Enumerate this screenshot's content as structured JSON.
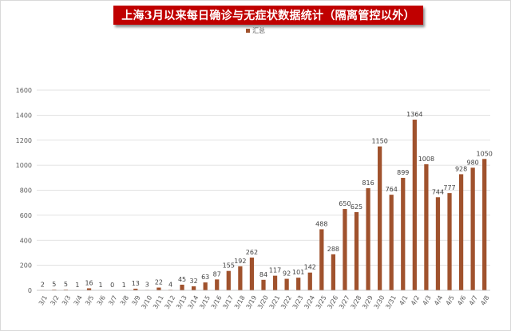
{
  "chart_data": {
    "type": "bar",
    "title": "上海3月以来每日确诊与无症状数据统计（隔离管控以外）",
    "legend": [
      "汇总"
    ],
    "legend_position": "top-center",
    "series": [
      {
        "name": "汇总",
        "color": "#a0522d",
        "values": [
          2,
          5,
          5,
          1,
          16,
          1,
          0,
          1,
          13,
          3,
          22,
          4,
          45,
          32,
          63,
          87,
          155,
          192,
          262,
          84,
          117,
          92,
          101,
          142,
          488,
          288,
          650,
          625,
          816,
          1150,
          764,
          899,
          1364,
          1008,
          744,
          777,
          928,
          980,
          1050
        ]
      }
    ],
    "categories": [
      "3/1",
      "3/2",
      "3/3",
      "3/4",
      "3/5",
      "3/6",
      "3/7",
      "3/8",
      "3/9",
      "3/10",
      "3/11",
      "3/12",
      "3/13",
      "3/14",
      "3/15",
      "3/16",
      "3/17",
      "3/18",
      "3/19",
      "3/20",
      "3/21",
      "3/22",
      "3/23",
      "3/24",
      "3/25",
      "3/26",
      "3/27",
      "3/28",
      "3/29",
      "3/30",
      "3/31",
      "4/1",
      "4/2",
      "4/3",
      "4/4",
      "4/5",
      "4/6",
      "4/7",
      "4/8"
    ],
    "ylim": [
      0,
      1600
    ],
    "yticks": [
      "0",
      "200",
      "400",
      "600",
      "800",
      "1000",
      "1200",
      "1400",
      "1600"
    ],
    "grid": true,
    "xlabel": "",
    "ylabel": ""
  },
  "colors": {
    "title_background": "#c00000",
    "title_text": "#ffffff",
    "bar": "#a0522d",
    "grid": "#d9d9d9",
    "axis_text": "#595959"
  }
}
